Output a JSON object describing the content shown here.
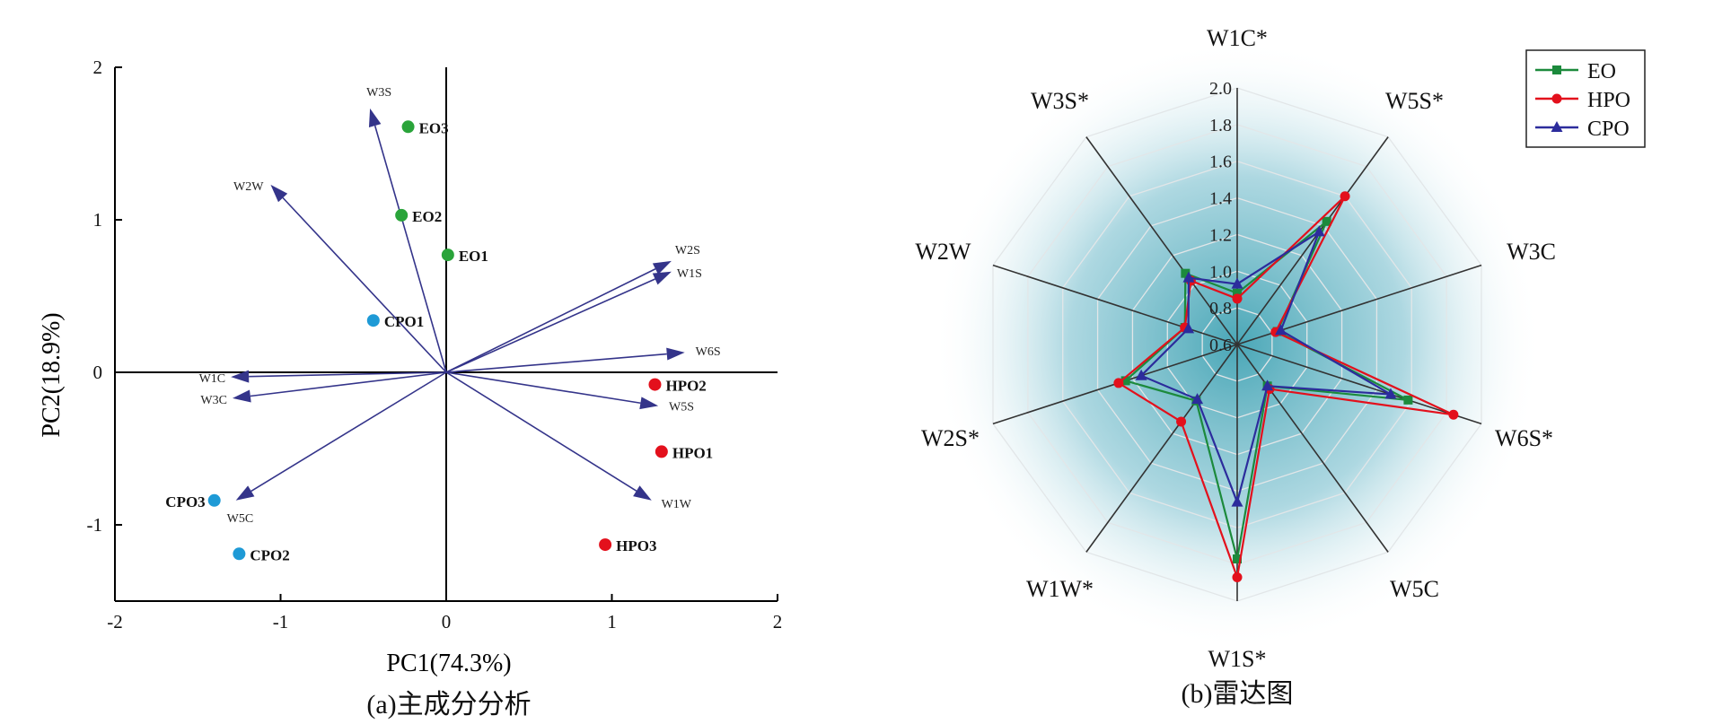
{
  "chart_data": [
    {
      "type": "scatter",
      "subtype": "pca-biplot",
      "caption": "(a)主成分分析",
      "xlabel": "PC1(74.3%)",
      "ylabel": "PC2(18.9%)",
      "xlim": [
        -2,
        2
      ],
      "ylim": [
        -1.5,
        2
      ],
      "xticks": [
        "-2",
        "-1",
        "0",
        "1",
        "2"
      ],
      "yticks": [
        "-1",
        "0",
        "1",
        "2"
      ],
      "grid": false,
      "groups": [
        {
          "name": "EO",
          "color": "#2aa43a"
        },
        {
          "name": "HPO",
          "color": "#e3101c"
        },
        {
          "name": "CPO",
          "color": "#1e9ad6"
        }
      ],
      "points": [
        {
          "label": "EO3",
          "group": "EO",
          "x": -0.23,
          "y": 1.61
        },
        {
          "label": "EO2",
          "group": "EO",
          "x": -0.27,
          "y": 1.03
        },
        {
          "label": "EO1",
          "group": "EO",
          "x": 0.01,
          "y": 0.77
        },
        {
          "label": "CPO1",
          "group": "CPO",
          "x": -0.44,
          "y": 0.34
        },
        {
          "label": "CPO3",
          "group": "CPO",
          "x": -1.4,
          "y": -0.84
        },
        {
          "label": "CPO2",
          "group": "CPO",
          "x": -1.25,
          "y": -1.19
        },
        {
          "label": "HPO2",
          "group": "HPO",
          "x": 1.26,
          "y": -0.08
        },
        {
          "label": "HPO1",
          "group": "HPO",
          "x": 1.3,
          "y": -0.52
        },
        {
          "label": "HPO3",
          "group": "HPO",
          "x": 0.96,
          "y": -1.13
        }
      ],
      "loadings": [
        {
          "label": "W3S",
          "x": -0.46,
          "y": 1.73
        },
        {
          "label": "W2W",
          "x": -1.06,
          "y": 1.23
        },
        {
          "label": "W2S",
          "x": 1.36,
          "y": 0.73
        },
        {
          "label": "W1S",
          "x": 1.36,
          "y": 0.66
        },
        {
          "label": "W6S",
          "x": 1.44,
          "y": 0.13
        },
        {
          "label": "W1C",
          "x": -1.3,
          "y": -0.03
        },
        {
          "label": "W3C",
          "x": -1.29,
          "y": -0.17
        },
        {
          "label": "W5S",
          "x": 1.28,
          "y": -0.22
        },
        {
          "label": "W1W",
          "x": 1.24,
          "y": -0.84
        },
        {
          "label": "W5C",
          "x": -1.27,
          "y": -0.84
        }
      ],
      "arrow_color": "#34348a"
    },
    {
      "type": "radar",
      "caption": "(b)雷达图",
      "axes": [
        "W1C*",
        "W5S*",
        "W3C",
        "W6S*",
        "W5C",
        "W1S*",
        "W1W*",
        "W2S*",
        "W2W",
        "W3S*"
      ],
      "r_range": [
        0.6,
        2.0
      ],
      "r_ticks": [
        "0.6",
        "0.8",
        "1.0",
        "1.2",
        "1.4",
        "1.6",
        "1.8",
        "2.0"
      ],
      "legend_position": "top-right",
      "series": [
        {
          "name": "EO",
          "color": "#1c8a3c",
          "marker": "square",
          "values": [
            0.88,
            1.43,
            0.83,
            1.58,
            0.88,
            1.77,
            0.98,
            1.24,
            0.9,
            1.08
          ]
        },
        {
          "name": "HPO",
          "color": "#e3101c",
          "marker": "circle",
          "values": [
            0.85,
            1.6,
            0.82,
            1.84,
            0.9,
            1.87,
            1.12,
            1.28,
            0.9,
            1.03
          ]
        },
        {
          "name": "CPO",
          "color": "#2c2c9c",
          "marker": "triangle",
          "values": [
            0.93,
            1.36,
            0.85,
            1.48,
            0.88,
            1.46,
            0.97,
            1.15,
            0.88,
            1.05
          ]
        }
      ]
    }
  ]
}
